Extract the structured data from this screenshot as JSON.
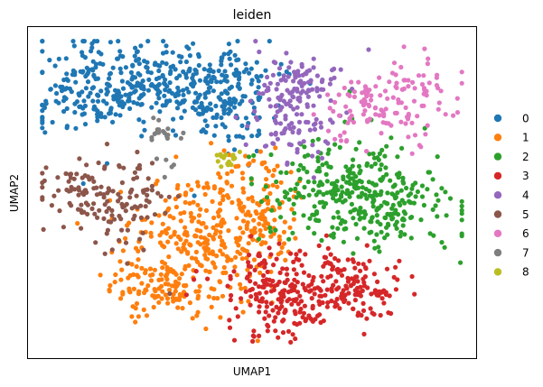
{
  "chart_data": {
    "type": "scatter",
    "title": "leiden",
    "xlabel": "UMAP1",
    "ylabel": "UMAP2",
    "xlim": [
      0,
      100
    ],
    "ylim": [
      0,
      100
    ],
    "grid": false,
    "ticks": false,
    "legend_position": "right",
    "series": [
      {
        "name": "0",
        "color": "#1f77b4",
        "count": 520,
        "blobs": [
          {
            "cx": 15,
            "cy": 81,
            "sx": 8,
            "sy": 7,
            "w": 1
          },
          {
            "cx": 33,
            "cy": 84,
            "sx": 10,
            "sy": 6,
            "w": 1.3
          },
          {
            "cx": 44,
            "cy": 78,
            "sx": 5,
            "sy": 8,
            "w": 0.8
          }
        ]
      },
      {
        "name": "1",
        "color": "#ff7f0e",
        "count": 480,
        "blobs": [
          {
            "cx": 39,
            "cy": 38,
            "sx": 9,
            "sy": 11,
            "w": 1.4
          },
          {
            "cx": 29,
            "cy": 22,
            "sx": 6,
            "sy": 5,
            "w": 0.5
          },
          {
            "cx": 52,
            "cy": 42,
            "sx": 5,
            "sy": 9,
            "w": 0.5
          }
        ]
      },
      {
        "name": "2",
        "color": "#2ca02c",
        "count": 360,
        "blobs": [
          {
            "cx": 78,
            "cy": 46,
            "sx": 9,
            "sy": 6,
            "w": 1.2
          },
          {
            "cx": 68,
            "cy": 54,
            "sx": 8,
            "sy": 7,
            "w": 0.8
          }
        ]
      },
      {
        "name": "3",
        "color": "#d62728",
        "count": 330,
        "blobs": [
          {
            "cx": 56,
            "cy": 19,
            "sx": 7,
            "sy": 7,
            "w": 1.2
          },
          {
            "cx": 72,
            "cy": 22,
            "sx": 6,
            "sy": 5,
            "w": 0.8
          }
        ]
      },
      {
        "name": "4",
        "color": "#9467bd",
        "count": 170,
        "blobs": [
          {
            "cx": 58,
            "cy": 76,
            "sx": 5,
            "sy": 8,
            "w": 1
          },
          {
            "cx": 62,
            "cy": 84,
            "sx": 4,
            "sy": 3,
            "w": 0.4
          }
        ]
      },
      {
        "name": "5",
        "color": "#8c564b",
        "count": 150,
        "blobs": [
          {
            "cx": 13,
            "cy": 50,
            "sx": 6,
            "sy": 5,
            "w": 1
          },
          {
            "cx": 22,
            "cy": 44,
            "sx": 4,
            "sy": 8,
            "w": 0.8
          }
        ]
      },
      {
        "name": "6",
        "color": "#e377c2",
        "count": 140,
        "blobs": [
          {
            "cx": 86,
            "cy": 78,
            "sx": 5,
            "sy": 7,
            "w": 1.2
          },
          {
            "cx": 74,
            "cy": 76,
            "sx": 4,
            "sy": 5,
            "w": 0.7
          }
        ]
      },
      {
        "name": "7",
        "color": "#7f7f7f",
        "count": 22,
        "blobs": [
          {
            "cx": 30,
            "cy": 68,
            "sx": 2.5,
            "sy": 2.5,
            "w": 1
          },
          {
            "cx": 31,
            "cy": 58,
            "sx": 1.2,
            "sy": 2.5,
            "w": 0.5
          }
        ]
      },
      {
        "name": "8",
        "color": "#bcbd22",
        "count": 18,
        "blobs": [
          {
            "cx": 45,
            "cy": 60,
            "sx": 1.8,
            "sy": 1.5,
            "w": 1
          }
        ]
      }
    ]
  }
}
